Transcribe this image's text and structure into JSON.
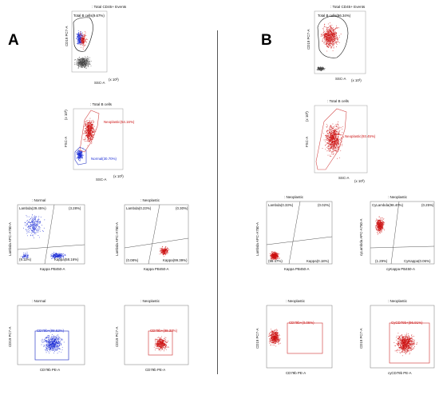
{
  "panels": {
    "A": "A",
    "B": "B"
  },
  "colors": {
    "red": "#cc1111",
    "blue": "#1e2fd6",
    "gray": "#444444",
    "gate_red": "#d44a4a",
    "gate_blue": "#3340c8",
    "gate_black": "#111111"
  },
  "plots": {
    "A1": {
      "title": ": Total CD45+ Events",
      "gate": "Total B cells(9.67%)",
      "xlabel": "SSC-A",
      "ylabel": "CD19 PC7-A",
      "xunit": "(x 10³)"
    },
    "A2": {
      "title": ": Total B cells",
      "gate_neo": "Neoplastic(54.16%)",
      "gate_norm": "Normal(30.70%)",
      "xlabel": "SSC-A",
      "ylabel": "FSC-A",
      "yunit": "(x 10³)",
      "xunit": "(x 10³)"
    },
    "A3": {
      "title": ": Normal",
      "q_ul": "Lambda(29.45%)",
      "q_ur": "(3.28%)",
      "q_ll": "(9.11%)",
      "q_lr": "Kappa(58.16%)",
      "xlabel": "Kappa PB450-A",
      "ylabel": "Lambda APC-A750-A"
    },
    "A4": {
      "title": ": Neoplastic",
      "q_ul": "Lambda(0.23%)",
      "q_ur": "(0.30%)",
      "q_ll": "(0.08%)",
      "q_lr": "Kappa(99.39%)",
      "xlabel": "Kappa PB450-A",
      "ylabel": "Lambda APC-A750-A"
    },
    "A5": {
      "title": ": Normal",
      "gate": "CD79b+(98.62%)",
      "xlabel": "CD79b PE-A",
      "ylabel": "CD19 PC7-A"
    },
    "A6": {
      "title": ": Neoplastic",
      "gate": "CD79b+(98.33%)",
      "xlabel": "CD79b PE-A",
      "ylabel": "CD19 PC7-A"
    },
    "B1": {
      "title": ": Total CD45+ Events",
      "gate": "Total B cells(86.34%)",
      "xlabel": "SSC-A",
      "ylabel": "CD19 PC7-A",
      "xunit": "(x 10³)"
    },
    "B2": {
      "title": ": Total B cells",
      "gate_neo": "Neoplastic(93.45%)",
      "xlabel": "SSC-A",
      "ylabel": "FSC-A",
      "yunit": "(x 10³)",
      "xunit": "(x 10³)"
    },
    "B3": {
      "title": ": Neoplastic",
      "q_ul": "Lambda(0.33%)",
      "q_ur": "(0.02%)",
      "q_ll": "(99.47%)",
      "q_lr": "Kappa(0.18%)",
      "xlabel": "Kappa PB450-A",
      "ylabel": "Lambda APC-A750-A"
    },
    "B4": {
      "title": ": Neoplastic",
      "q_ul": "CyLambda(98.40%)",
      "q_ur": "(0.25%)",
      "q_ll": "(1.29%)",
      "q_lr": "CyKappa(0.06%)",
      "xlabel": "cyKappa PB450-A",
      "ylabel": "cyLambda APC-A750-A"
    },
    "B5": {
      "title": ": Neoplastic",
      "gate": "CD79b+(0.06%)",
      "xlabel": "CD79b PE-A",
      "ylabel": "CD19 PC7-A"
    },
    "B6": {
      "title": ": Neoplastic",
      "gate": "CyCD79b+(96.91%)",
      "xlabel": "cyCD79b PE-A",
      "ylabel": "CD19 PC7-A"
    }
  }
}
